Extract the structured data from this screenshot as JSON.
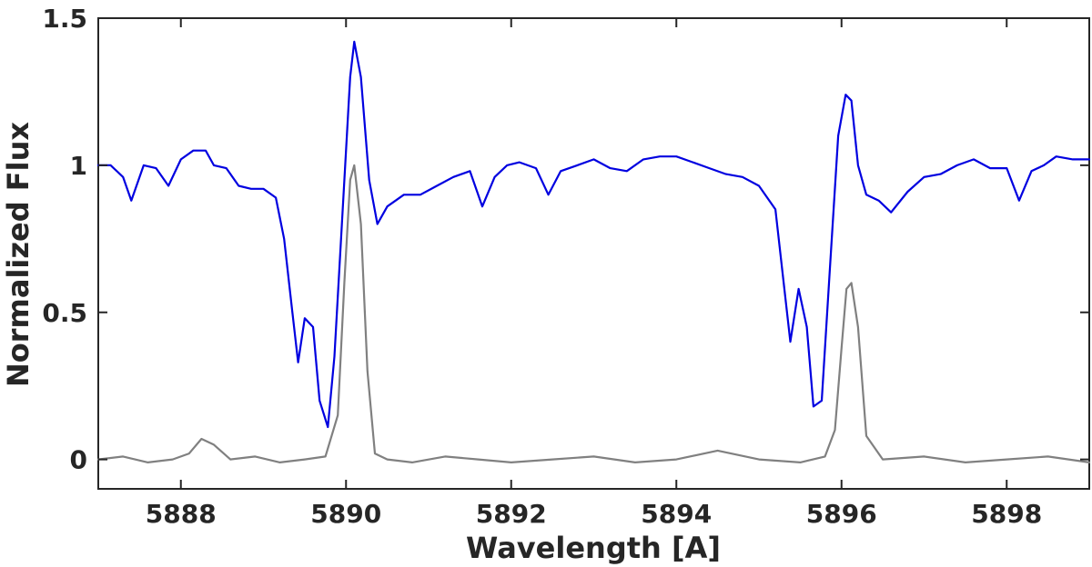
{
  "chart_data": {
    "type": "line",
    "title": "",
    "xlabel": "Wavelength [A]",
    "ylabel": "Normalized Flux",
    "xlim": [
      5887,
      5899
    ],
    "ylim": [
      -0.1,
      1.5
    ],
    "xticks": [
      {
        "value": 5888,
        "label": "5888"
      },
      {
        "value": 5890,
        "label": "5890"
      },
      {
        "value": 5892,
        "label": "5892"
      },
      {
        "value": 5894,
        "label": "5894"
      },
      {
        "value": 5896,
        "label": "5896"
      },
      {
        "value": 5898,
        "label": "5898"
      }
    ],
    "yticks": [
      {
        "value": 0,
        "label": "0"
      },
      {
        "value": 0.5,
        "label": "0.5"
      },
      {
        "value": 1,
        "label": "1"
      },
      {
        "value": 1.5,
        "label": "1.5"
      }
    ],
    "grid": false,
    "legend": "none",
    "series": [
      {
        "color": "#0000e0",
        "x": [
          5887.0,
          5887.15,
          5887.3,
          5887.4,
          5887.55,
          5887.7,
          5887.85,
          5888.0,
          5888.15,
          5888.3,
          5888.4,
          5888.55,
          5888.7,
          5888.85,
          5889.0,
          5889.15,
          5889.25,
          5889.35,
          5889.42,
          5889.5,
          5889.6,
          5889.68,
          5889.78,
          5889.86,
          5889.95,
          5890.05,
          5890.1,
          5890.18,
          5890.28,
          5890.38,
          5890.5,
          5890.7,
          5890.9,
          5891.1,
          5891.3,
          5891.5,
          5891.65,
          5891.8,
          5891.95,
          5892.1,
          5892.3,
          5892.45,
          5892.6,
          5892.8,
          5893.0,
          5893.2,
          5893.4,
          5893.6,
          5893.8,
          5894.0,
          5894.2,
          5894.4,
          5894.6,
          5894.8,
          5895.0,
          5895.2,
          5895.3,
          5895.38,
          5895.48,
          5895.58,
          5895.66,
          5895.76,
          5895.86,
          5895.96,
          5896.05,
          5896.12,
          5896.2,
          5896.3,
          5896.45,
          5896.6,
          5896.8,
          5897.0,
          5897.2,
          5897.4,
          5897.6,
          5897.8,
          5898.0,
          5898.15,
          5898.3,
          5898.45,
          5898.6,
          5898.8,
          5899.0
        ],
        "y": [
          1.0,
          1.0,
          0.96,
          0.88,
          1.0,
          0.99,
          0.93,
          1.02,
          1.05,
          1.05,
          1.0,
          0.99,
          0.93,
          0.92,
          0.92,
          0.89,
          0.75,
          0.5,
          0.33,
          0.48,
          0.45,
          0.2,
          0.11,
          0.35,
          0.8,
          1.3,
          1.42,
          1.3,
          0.95,
          0.8,
          0.86,
          0.9,
          0.9,
          0.93,
          0.96,
          0.98,
          0.86,
          0.96,
          1.0,
          1.01,
          0.99,
          0.9,
          0.98,
          1.0,
          1.02,
          0.99,
          0.98,
          1.02,
          1.03,
          1.03,
          1.01,
          0.99,
          0.97,
          0.96,
          0.93,
          0.85,
          0.6,
          0.4,
          0.58,
          0.45,
          0.18,
          0.2,
          0.65,
          1.1,
          1.24,
          1.22,
          1.0,
          0.9,
          0.88,
          0.84,
          0.91,
          0.96,
          0.97,
          1.0,
          1.02,
          0.99,
          0.99,
          0.88,
          0.98,
          1.0,
          1.03,
          1.02,
          1.02
        ]
      },
      {
        "color": "#808080",
        "x": [
          5887.0,
          5887.3,
          5887.6,
          5887.9,
          5888.1,
          5888.25,
          5888.4,
          5888.6,
          5888.9,
          5889.2,
          5889.5,
          5889.75,
          5889.9,
          5889.98,
          5890.05,
          5890.1,
          5890.18,
          5890.26,
          5890.35,
          5890.5,
          5890.8,
          5891.2,
          5891.6,
          5892.0,
          5892.5,
          5893.0,
          5893.5,
          5894.0,
          5894.5,
          5895.0,
          5895.5,
          5895.8,
          5895.92,
          5896.0,
          5896.06,
          5896.12,
          5896.2,
          5896.3,
          5896.5,
          5897.0,
          5897.5,
          5898.0,
          5898.5,
          5899.0
        ],
        "y": [
          0.0,
          0.01,
          -0.01,
          0.0,
          0.02,
          0.07,
          0.05,
          0.0,
          0.01,
          -0.01,
          0.0,
          0.01,
          0.15,
          0.6,
          0.95,
          1.0,
          0.8,
          0.3,
          0.02,
          0.0,
          -0.01,
          0.01,
          0.0,
          -0.01,
          0.0,
          0.01,
          -0.01,
          0.0,
          0.03,
          0.0,
          -0.01,
          0.01,
          0.1,
          0.38,
          0.58,
          0.6,
          0.45,
          0.08,
          0.0,
          0.01,
          -0.01,
          0.0,
          0.01,
          -0.01
        ]
      }
    ]
  }
}
